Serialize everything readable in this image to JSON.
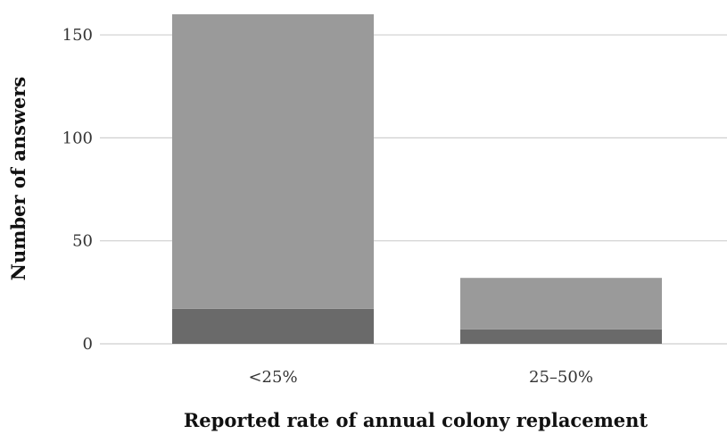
{
  "chart_data": {
    "type": "bar",
    "stacked": true,
    "categories": [
      "<25%",
      "25–50%"
    ],
    "series": [
      {
        "values": [
          17,
          7
        ],
        "color": "#6a6a6a"
      },
      {
        "values": [
          143,
          25
        ],
        "color": "#9a9a9a"
      }
    ],
    "totals": [
      160,
      32
    ],
    "xlabel": "Reported rate of annual colony replacement",
    "ylabel": "Number of answers",
    "ylim": [
      0,
      160
    ],
    "yticks": [
      0,
      50,
      100,
      150
    ],
    "grid": true,
    "legend": "none"
  }
}
